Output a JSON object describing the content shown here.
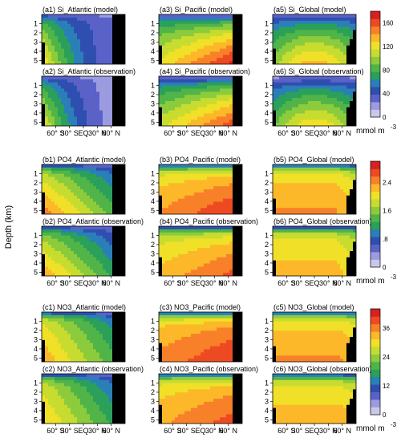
{
  "figure": {
    "y_axis_label": "Depth (km)",
    "unit": "mmol m",
    "unit_exp": "-3"
  },
  "chart_data": [
    {
      "type": "heatmap",
      "variable": "Si",
      "colorbar": {
        "ticks": [
          "0",
          "40",
          "80",
          "120",
          "160"
        ],
        "range": [
          0,
          180
        ]
      },
      "panels": [
        {
          "id": "a1",
          "title": "(a1) Si_Atlantic (model)",
          "basin": "Atlantic"
        },
        {
          "id": "a3",
          "title": "(a3) Si_Pacific (model)",
          "basin": "Pacific"
        },
        {
          "id": "a5",
          "title": "(a5) Si_Global (model)",
          "basin": "Global"
        },
        {
          "id": "a2",
          "title": "(a2) Si_Atlantic (observation)",
          "basin": "Atlantic"
        },
        {
          "id": "a4",
          "title": "(a4) Si_Pacific (observation)",
          "basin": "Pacific"
        },
        {
          "id": "a6",
          "title": "(a6) Si_Global (observation)",
          "basin": "Global"
        }
      ]
    },
    {
      "type": "heatmap",
      "variable": "PO4",
      "colorbar": {
        "ticks": [
          "0",
          ".8",
          "1.6",
          "2.4"
        ],
        "range": [
          0,
          3.0
        ]
      },
      "panels": [
        {
          "id": "b1",
          "title": "(b1) PO4_Atlantic (model)",
          "basin": "Atlantic"
        },
        {
          "id": "b3",
          "title": "(b3) PO4_Pacific (model)",
          "basin": "Pacific"
        },
        {
          "id": "b5",
          "title": "(b5) PO4_Global (model)",
          "basin": "Global"
        },
        {
          "id": "b2",
          "title": "(b2) PO4_Atlantic (observation)",
          "basin": "Atlantic"
        },
        {
          "id": "b4",
          "title": "(b4) PO4_Pacific (observation)",
          "basin": "Pacific"
        },
        {
          "id": "b6",
          "title": "(b6) PO4_Global (observation)",
          "basin": "Global"
        }
      ]
    },
    {
      "type": "heatmap",
      "variable": "NO3",
      "colorbar": {
        "ticks": [
          "0",
          "12",
          "24",
          "36"
        ],
        "range": [
          0,
          44
        ]
      },
      "panels": [
        {
          "id": "c1",
          "title": "(c1) NO3_Atlantic (model)",
          "basin": "Atlantic"
        },
        {
          "id": "c3",
          "title": "(c3) NO3_Pacific (model)",
          "basin": "Pacific"
        },
        {
          "id": "c5",
          "title": "(c5) NO3_Global (model)",
          "basin": "Global"
        },
        {
          "id": "c2",
          "title": "(c2) NO3_Atlantic (observation)",
          "basin": "Atlantic"
        },
        {
          "id": "c4",
          "title": "(c4) NO3_Pacific (observation)",
          "basin": "Pacific"
        },
        {
          "id": "c6",
          "title": "(c6) NO3_Global (observation)",
          "basin": "Global"
        }
      ]
    }
  ],
  "axes": {
    "depth_ticks": [
      "1",
      "2",
      "3",
      "4",
      "5"
    ],
    "lat_ticks": [
      "60° S",
      "30° S",
      "EQ",
      "30° N",
      "60° N"
    ]
  },
  "colors": {
    "scale": [
      "#c8c8ea",
      "#9b9be0",
      "#5a62c8",
      "#2f4fb0",
      "#2a7fb8",
      "#2aa05a",
      "#50b448",
      "#8ccc3c",
      "#c8dc30",
      "#f0e028",
      "#fcb828",
      "#f88028",
      "#ee4a22",
      "#d82020"
    ],
    "land": "#000000"
  }
}
